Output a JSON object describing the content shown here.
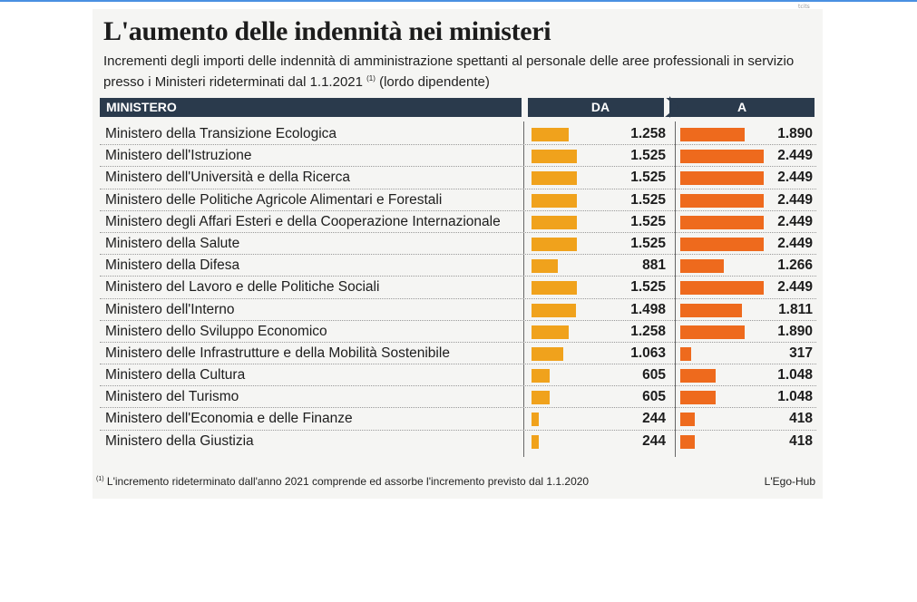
{
  "corner_mark": "tcits",
  "chart_data": {
    "type": "bar",
    "title": "L'aumento delle indennità nei ministeri",
    "subtitle": "Incrementi degli importi delle indennità di amministrazione spettanti al personale delle aree professionali in servizio presso i Ministeri rideterminati dal 1.1.2021",
    "subtitle_note_mark": "(1)",
    "subtitle_suffix": "(lordo dipendente)",
    "column_headers": {
      "name": "MINISTERO",
      "from": "DA",
      "to": "A"
    },
    "categories": [
      "Ministero della Transizione Ecologica",
      "Ministero dell'Istruzione",
      "Ministero dell'Università e della Ricerca",
      "Ministero delle Politiche Agricole Alimentari e Forestali",
      "Ministero degli Affari Esteri e della Cooperazione Internazionale",
      "Ministero della Salute",
      "Ministero della Difesa",
      "Ministero del Lavoro e delle Politiche Sociali",
      "Ministero dell'Interno",
      "Ministero dello Sviluppo Economico",
      "Ministero delle Infrastrutture e della Mobilità Sostenibile",
      "Ministero della Cultura",
      "Ministero del Turismo",
      "Ministero dell'Economia e delle Finanze",
      "Ministero della Giustizia"
    ],
    "series": [
      {
        "name": "DA",
        "color": "#f0a21c",
        "values": [
          1258,
          1525,
          1525,
          1525,
          1525,
          1525,
          881,
          1525,
          1498,
          1258,
          1063,
          605,
          605,
          244,
          244
        ],
        "labels": [
          "1.258",
          "1.525",
          "1.525",
          "1.525",
          "1.525",
          "1.525",
          "881",
          "1.525",
          "1.498",
          "1.258",
          "1.063",
          "605",
          "605",
          "244",
          "244"
        ]
      },
      {
        "name": "A",
        "color": "#ee6a1d",
        "values": [
          1890,
          2449,
          2449,
          2449,
          2449,
          2449,
          1266,
          2449,
          1811,
          1890,
          317,
          1048,
          1048,
          418,
          418
        ],
        "labels": [
          "1.890",
          "2.449",
          "2.449",
          "2.449",
          "2.449",
          "2.449",
          "1.266",
          "2.449",
          "1.811",
          "1.890",
          "317",
          "1.048",
          "1.048",
          "418",
          "418"
        ]
      }
    ],
    "footnote_mark": "(1)",
    "footnote": "L'incremento rideterminato dall'anno 2021 comprende ed assorbe l'incremento previsto dal 1.1.2020",
    "source": "L'Ego-Hub"
  }
}
